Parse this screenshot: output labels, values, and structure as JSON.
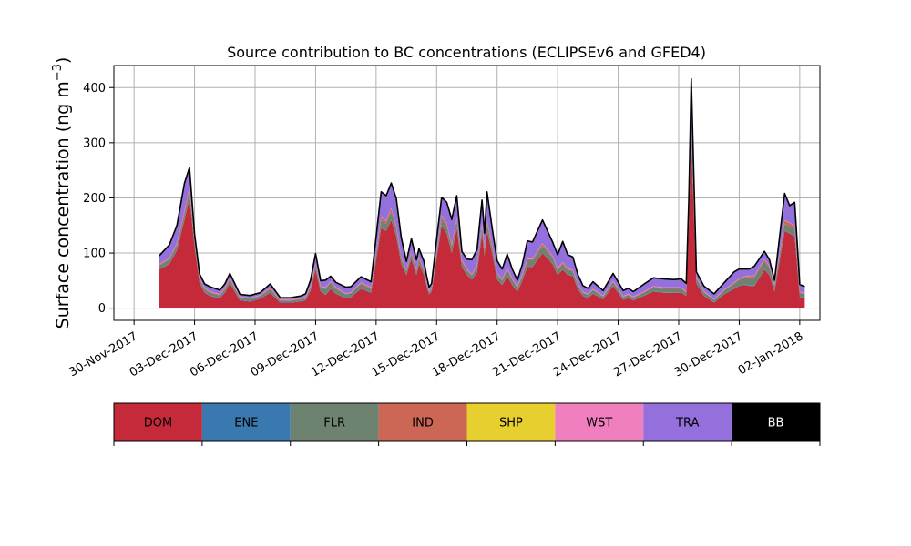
{
  "chart_data": {
    "type": "area",
    "stacked": true,
    "title": "Source contribution to BC concentrations (ECLIPSEv6 and GFED4)",
    "ylabel": "Surface concentration (ng m",
    "ylabel_unit_exponent": "−3",
    "ylabel_close": ")",
    "xlabel": "",
    "x_range": [
      "2017-11-29",
      "2018-01-03"
    ],
    "ylim": [
      -22,
      440
    ],
    "grid": true,
    "x_ticks": [
      "30-Nov-2017",
      "03-Dec-2017",
      "06-Dec-2017",
      "09-Dec-2017",
      "12-Dec-2017",
      "15-Dec-2017",
      "18-Dec-2017",
      "21-Dec-2017",
      "24-Dec-2017",
      "27-Dec-2017",
      "30-Dec-2017",
      "02-Jan-2018"
    ],
    "x_tick_dates": [
      "2017-11-30",
      "2017-12-03",
      "2017-12-06",
      "2017-12-09",
      "2017-12-12",
      "2017-12-15",
      "2017-12-18",
      "2017-12-21",
      "2017-12-24",
      "2017-12-27",
      "2017-12-30",
      "2018-01-02"
    ],
    "y_ticks": [
      0,
      100,
      200,
      300,
      400
    ],
    "dates": [
      "2017-12-01 06:00",
      "2017-12-01 18:00",
      "2017-12-02 03:00",
      "2017-12-02 12:00",
      "2017-12-02 18:00",
      "2017-12-03 00:00",
      "2017-12-03 06:00",
      "2017-12-03 12:00",
      "2017-12-03 18:00",
      "2017-12-04 06:00",
      "2017-12-04 12:00",
      "2017-12-04 18:00",
      "2017-12-05 06:00",
      "2017-12-05 18:00",
      "2017-12-06 06:00",
      "2017-12-06 18:00",
      "2017-12-07 06:00",
      "2017-12-07 18:00",
      "2017-12-08 06:00",
      "2017-12-08 12:00",
      "2017-12-08 18:00",
      "2017-12-09 00:00",
      "2017-12-09 06:00",
      "2017-12-09 12:00",
      "2017-12-09 18:00",
      "2017-12-10 00:00",
      "2017-12-10 12:00",
      "2017-12-10 18:00",
      "2017-12-11 06:00",
      "2017-12-11 18:00",
      "2017-12-12 06:00",
      "2017-12-12 12:00",
      "2017-12-12 18:00",
      "2017-12-13 00:00",
      "2017-12-13 06:00",
      "2017-12-13 12:00",
      "2017-12-13 18:00",
      "2017-12-14 00:00",
      "2017-12-14 03:00",
      "2017-12-14 09:00",
      "2017-12-14 12:00",
      "2017-12-14 15:00",
      "2017-12-14 18:00",
      "2017-12-15 00:00",
      "2017-12-15 06:00",
      "2017-12-15 12:00",
      "2017-12-15 18:00",
      "2017-12-16 00:00",
      "2017-12-16 06:00",
      "2017-12-16 12:00",
      "2017-12-16 18:00",
      "2017-12-17 00:00",
      "2017-12-17 06:00",
      "2017-12-17 09:00",
      "2017-12-17 12:00",
      "2017-12-17 18:00",
      "2017-12-18 00:00",
      "2017-12-18 06:00",
      "2017-12-18 12:00",
      "2017-12-18 18:00",
      "2017-12-19 00:00",
      "2017-12-19 06:00",
      "2017-12-19 12:00",
      "2017-12-19 18:00",
      "2017-12-20 06:00",
      "2017-12-20 18:00",
      "2017-12-21 00:00",
      "2017-12-21 06:00",
      "2017-12-21 12:00",
      "2017-12-21 18:00",
      "2017-12-22 00:00",
      "2017-12-22 06:00",
      "2017-12-22 12:00",
      "2017-12-22 18:00",
      "2017-12-23 06:00",
      "2017-12-23 18:00",
      "2017-12-24 06:00",
      "2017-12-24 12:00",
      "2017-12-24 18:00",
      "2017-12-25 06:00",
      "2017-12-25 18:00",
      "2017-12-26 06:00",
      "2017-12-26 18:00",
      "2017-12-27 03:00",
      "2017-12-27 09:00",
      "2017-12-27 12:00",
      "2017-12-27 15:00",
      "2017-12-27 21:00",
      "2017-12-28 06:00",
      "2017-12-28 18:00",
      "2017-12-29 06:00",
      "2017-12-29 18:00",
      "2017-12-30 00:00",
      "2017-12-30 06:00",
      "2017-12-30 12:00",
      "2017-12-30 18:00",
      "2017-12-31 06:00",
      "2017-12-31 12:00",
      "2017-12-31 18:00",
      "2018-01-01 06:00",
      "2018-01-01 12:00",
      "2018-01-01 18:00",
      "2018-01-02 00:00",
      "2018-01-02 06:00"
    ],
    "series": [
      {
        "name": "DOM",
        "color": "#c52a3a",
        "values": [
          70,
          80,
          105,
          160,
          200,
          110,
          45,
          28,
          22,
          18,
          28,
          45,
          14,
          12,
          17,
          28,
          10,
          10,
          12,
          14,
          32,
          70,
          30,
          24,
          35,
          26,
          18,
          20,
          35,
          28,
          145,
          140,
          160,
          130,
          80,
          60,
          90,
          60,
          80,
          60,
          40,
          25,
          30,
          90,
          150,
          135,
          100,
          145,
          75,
          60,
          52,
          65,
          135,
          95,
          140,
          100,
          52,
          42,
          58,
          42,
          30,
          50,
          75,
          75,
          100,
          80,
          60,
          70,
          60,
          58,
          35,
          22,
          18,
          26,
          16,
          40,
          15,
          18,
          14,
          22,
          30,
          28,
          28,
          28,
          22,
          150,
          300,
          45,
          22,
          10,
          25,
          35,
          40,
          42,
          40,
          40,
          70,
          60,
          30,
          140,
          135,
          130,
          20,
          18
        ]
      },
      {
        "name": "ENE",
        "color": "#3a78b0",
        "values": [
          1,
          1,
          1,
          1,
          1,
          1,
          1,
          1,
          1,
          1,
          1,
          1,
          1,
          1,
          1,
          1,
          1,
          1,
          1,
          1,
          1,
          1,
          1,
          1,
          1,
          1,
          1,
          1,
          1,
          1,
          1,
          1,
          1,
          1,
          1,
          1,
          1,
          1,
          1,
          1,
          1,
          1,
          1,
          1,
          1,
          1,
          1,
          1,
          1,
          1,
          1,
          1,
          1,
          1,
          1,
          1,
          1,
          1,
          1,
          1,
          1,
          1,
          1,
          1,
          1,
          1,
          1,
          1,
          1,
          1,
          1,
          1,
          1,
          1,
          1,
          1,
          1,
          1,
          1,
          1,
          1,
          1,
          1,
          1,
          1,
          1,
          1,
          1,
          1,
          1,
          1,
          1,
          1,
          1,
          1,
          1,
          1,
          1,
          1,
          1,
          1,
          1,
          1,
          1
        ]
      },
      {
        "name": "FLR",
        "color": "#6e8270",
        "values": [
          6,
          7,
          8,
          10,
          12,
          8,
          6,
          5,
          5,
          4,
          5,
          6,
          4,
          4,
          4,
          5,
          3,
          3,
          3,
          4,
          5,
          7,
          6,
          10,
          10,
          8,
          6,
          6,
          8,
          6,
          14,
          12,
          14,
          12,
          8,
          6,
          8,
          6,
          8,
          6,
          5,
          4,
          4,
          8,
          12,
          12,
          10,
          12,
          8,
          7,
          6,
          8,
          12,
          10,
          12,
          10,
          8,
          7,
          10,
          8,
          6,
          8,
          10,
          10,
          12,
          10,
          8,
          9,
          8,
          8,
          6,
          5,
          5,
          6,
          4,
          6,
          4,
          5,
          4,
          5,
          6,
          6,
          6,
          6,
          5,
          10,
          18,
          8,
          6,
          4,
          6,
          8,
          10,
          12,
          15,
          15,
          14,
          12,
          8,
          12,
          12,
          12,
          6,
          6
        ]
      },
      {
        "name": "IND",
        "color": "#cc6655",
        "values": [
          2,
          2,
          3,
          5,
          6,
          4,
          2,
          2,
          2,
          1,
          2,
          2,
          1,
          1,
          1,
          2,
          1,
          1,
          1,
          1,
          2,
          3,
          2,
          2,
          2,
          2,
          1,
          1,
          2,
          2,
          5,
          5,
          6,
          5,
          3,
          2,
          3,
          2,
          3,
          2,
          2,
          1,
          1,
          3,
          5,
          5,
          4,
          5,
          3,
          2,
          2,
          3,
          5,
          4,
          5,
          4,
          2,
          2,
          3,
          2,
          2,
          2,
          3,
          3,
          4,
          3,
          2,
          3,
          2,
          2,
          2,
          1,
          1,
          1,
          1,
          2,
          1,
          1,
          1,
          1,
          2,
          2,
          2,
          2,
          1,
          5,
          10,
          2,
          1,
          1,
          1,
          2,
          2,
          2,
          2,
          2,
          3,
          3,
          2,
          6,
          6,
          6,
          2,
          2
        ]
      },
      {
        "name": "SHP",
        "color": "#e8cf30",
        "values": [
          0,
          0,
          0,
          0,
          0,
          0,
          0,
          0,
          0,
          0,
          0,
          0,
          0,
          0,
          0,
          0,
          0,
          0,
          0,
          0,
          0,
          0,
          0,
          0,
          0,
          0,
          0,
          0,
          0,
          0,
          0,
          0,
          0,
          0,
          0,
          0,
          0,
          0,
          0,
          0,
          0,
          0,
          0,
          0,
          0,
          0,
          0,
          0,
          0,
          0,
          0,
          0,
          0,
          0,
          0,
          0,
          0,
          0,
          0,
          0,
          0,
          0,
          0,
          0,
          0,
          0,
          0,
          0,
          0,
          0,
          0,
          0,
          0,
          0,
          0,
          0,
          0,
          0,
          0,
          0,
          0,
          0,
          0,
          0,
          0,
          0,
          0,
          0,
          0,
          0,
          0,
          0,
          0,
          0,
          0,
          0,
          0,
          0,
          0,
          0,
          0,
          0,
          0,
          0
        ]
      },
      {
        "name": "WST",
        "color": "#f07fbf",
        "values": [
          1,
          1,
          1,
          1,
          1,
          1,
          1,
          1,
          1,
          1,
          1,
          1,
          1,
          1,
          1,
          1,
          1,
          1,
          1,
          1,
          1,
          1,
          1,
          1,
          1,
          1,
          1,
          1,
          1,
          1,
          1,
          1,
          1,
          1,
          1,
          1,
          1,
          1,
          1,
          1,
          1,
          1,
          1,
          1,
          1,
          1,
          1,
          1,
          1,
          1,
          1,
          1,
          1,
          1,
          1,
          1,
          1,
          1,
          1,
          1,
          1,
          1,
          1,
          1,
          1,
          1,
          1,
          1,
          1,
          1,
          1,
          1,
          1,
          1,
          1,
          1,
          1,
          1,
          1,
          1,
          1,
          1,
          1,
          1,
          1,
          1,
          1,
          1,
          1,
          1,
          1,
          1,
          1,
          1,
          1,
          1,
          1,
          1,
          1,
          1,
          1,
          1,
          1,
          1
        ]
      },
      {
        "name": "TRA",
        "color": "#9370db",
        "values": [
          15,
          24,
          32,
          50,
          35,
          10,
          7,
          7,
          8,
          8,
          7,
          8,
          4,
          4,
          4,
          7,
          3,
          3,
          4,
          5,
          10,
          17,
          10,
          13,
          9,
          9,
          11,
          10,
          10,
          10,
          45,
          45,
          45,
          50,
          35,
          15,
          23,
          18,
          15,
          15,
          10,
          6,
          8,
          23,
          32,
          38,
          45,
          40,
          15,
          18,
          26,
          28,
          42,
          25,
          52,
          30,
          22,
          18,
          25,
          17,
          11,
          18,
          32,
          30,
          42,
          25,
          25,
          37,
          25,
          23,
          16,
          11,
          10,
          13,
          9,
          13,
          10,
          10,
          9,
          13,
          15,
          15,
          14,
          15,
          15,
          30,
          86,
          9,
          9,
          9,
          12,
          19,
          17,
          13,
          12,
          17,
          14,
          11,
          9,
          48,
          31,
          42,
          13,
          11
        ]
      },
      {
        "name": "BB",
        "color": "#000000",
        "values": [
          0,
          0,
          0,
          0,
          0,
          0,
          0,
          0,
          0,
          0,
          0,
          0,
          0,
          0,
          0,
          0,
          0,
          0,
          0,
          0,
          0,
          0,
          0,
          0,
          0,
          0,
          0,
          0,
          0,
          0,
          0,
          0,
          0,
          0,
          0,
          0,
          0,
          0,
          0,
          0,
          0,
          0,
          0,
          0,
          0,
          0,
          0,
          0,
          0,
          0,
          0,
          0,
          0,
          0,
          0,
          0,
          0,
          0,
          0,
          0,
          0,
          0,
          0,
          0,
          0,
          0,
          0,
          0,
          0,
          0,
          0,
          0,
          0,
          0,
          0,
          0,
          0,
          0,
          0,
          0,
          0,
          0,
          0,
          0,
          0,
          0,
          0,
          0,
          0,
          0,
          0,
          0,
          0,
          0,
          0,
          0,
          0,
          0,
          0,
          0,
          0,
          0,
          0,
          0
        ]
      }
    ],
    "legend_placement": "below",
    "legend": [
      {
        "label": "DOM",
        "color": "#c52a3a",
        "text_color": "#000000"
      },
      {
        "label": "ENE",
        "color": "#3a78b0",
        "text_color": "#000000"
      },
      {
        "label": "FLR",
        "color": "#6e8270",
        "text_color": "#000000"
      },
      {
        "label": "IND",
        "color": "#cc6655",
        "text_color": "#000000"
      },
      {
        "label": "SHP",
        "color": "#e8cf30",
        "text_color": "#000000"
      },
      {
        "label": "WST",
        "color": "#f07fbf",
        "text_color": "#000000"
      },
      {
        "label": "TRA",
        "color": "#9370db",
        "text_color": "#000000"
      },
      {
        "label": "BB",
        "color": "#000000",
        "text_color": "#ffffff"
      }
    ]
  }
}
